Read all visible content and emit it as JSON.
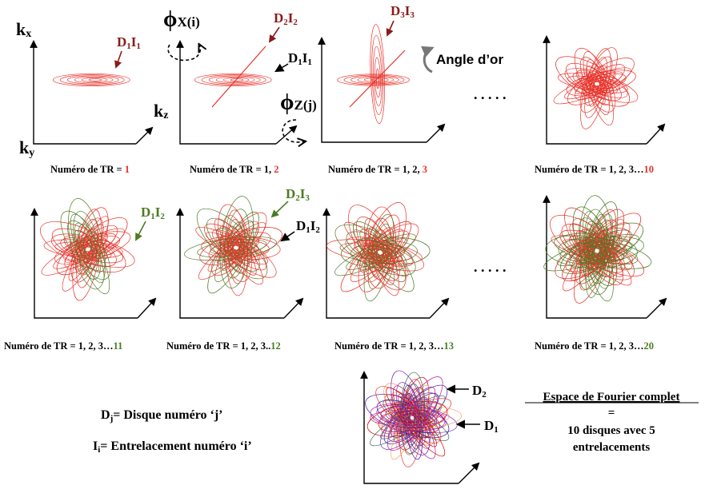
{
  "axes": {
    "kx": "k",
    "kx_sub": "x",
    "ky": "k",
    "ky_sub": "y",
    "kz": "k",
    "kz_sub": "z"
  },
  "phi": {
    "x_sym": "ϕ",
    "x_sub": "X(i)",
    "z_sym": "ϕ",
    "z_sub": "Z(j)"
  },
  "annotations": {
    "d1i1_a": {
      "D": "D",
      "d": "1",
      "I": "I",
      "i": "1"
    },
    "d2i2": {
      "D": "D",
      "d": "2",
      "I": "I",
      "i": "2"
    },
    "d1i1_b": {
      "D": "D",
      "d": "1",
      "I": "I",
      "i": "1"
    },
    "d3i3": {
      "D": "D",
      "d": "3",
      "I": "I",
      "i": "3"
    },
    "angle": "Angle d’or",
    "d1i2_g": {
      "D": "D",
      "d": "1",
      "I": "I",
      "i": "2"
    },
    "d2i3": {
      "D": "D",
      "d": "2",
      "I": "I",
      "i": "3"
    },
    "d1i2_b": {
      "D": "D",
      "d": "1",
      "I": "I",
      "i": "2"
    },
    "d2": {
      "D": "D",
      "d": "2"
    },
    "d1": {
      "D": "D",
      "d": "1"
    },
    "ellipsis_1": ". . . . .",
    "ellipsis_2": ". . . . ."
  },
  "captions": [
    {
      "prefix": "Numéro de TR = ",
      "suffix": "1",
      "color": "#e8332b"
    },
    {
      "prefix": "Numéro de TR = 1, ",
      "suffix": "2",
      "color": "#e8332b"
    },
    {
      "prefix": "Numéro de TR = 1, 2,  ",
      "suffix": "3",
      "color": "#e8332b"
    },
    {
      "prefix": "Numéro de TR = 1, 2, 3…",
      "suffix": "10",
      "color": "#e8332b"
    },
    {
      "prefix": "Numéro de TR = 1, 2, 3…",
      "suffix": "11",
      "color": "#4a7c23"
    },
    {
      "prefix": "Numéro de TR = 1, 2, 3..",
      "suffix": "12",
      "color": "#4a7c23"
    },
    {
      "prefix": "Numéro de TR = 1, 2, 3…",
      "suffix": "13",
      "color": "#4a7c23"
    },
    {
      "prefix": "Numéro de TR = 1, 2, 3…",
      "suffix": "20",
      "color": "#4a7c23"
    }
  ],
  "legend": {
    "dj": {
      "D": "D",
      "sub": "j",
      "text": "= Disque numéro ‘j’"
    },
    "ii": {
      "I": "I",
      "sub": "i",
      "text": "= Entrelacement numéro ‘i’"
    }
  },
  "summary": {
    "title": "Espace de Fourier complet",
    "eq": "=",
    "line1": "10 disques avec 5",
    "line2": "entrelacements"
  },
  "colors": {
    "red": "#e8332b",
    "darkred": "#8b1a1a",
    "green": "#4a7c23",
    "black": "#000000",
    "gray": "#777777"
  }
}
